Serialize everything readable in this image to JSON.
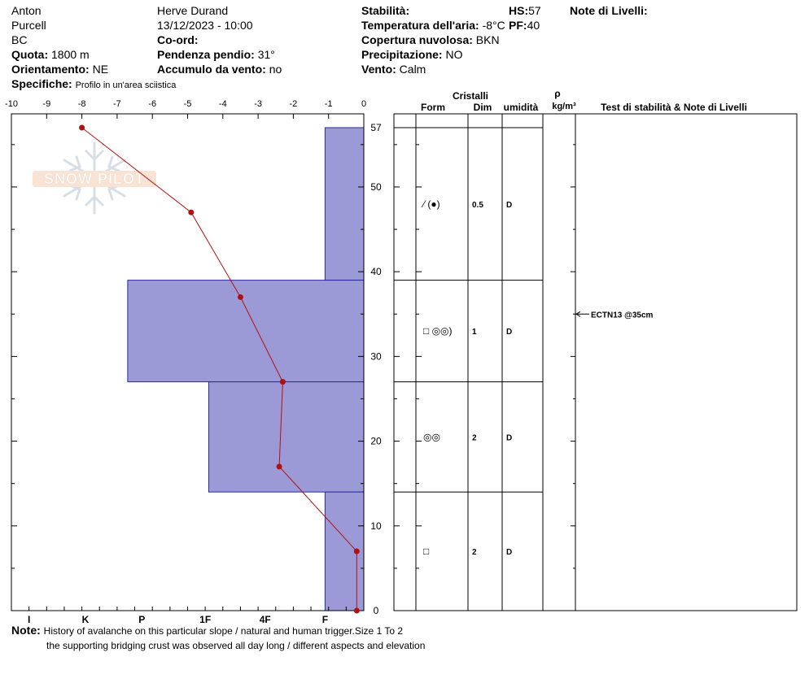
{
  "header": {
    "observer": "Anton",
    "range": "Purcell",
    "region": "BC",
    "elevation_label": "Quota:",
    "elevation_value": "1800 m",
    "aspect_label": "Orientamento:",
    "aspect_value": "NE",
    "specifics_label": "Specifiche:",
    "specifics_value": "Profilo in un'area sciistica",
    "author": "Herve Durand",
    "datetime": "13/12/2023 - 10:00",
    "coords_label": "Co-ord:",
    "slope_label": "Pendenza pendio:",
    "slope_value": "31°",
    "wind_loading_label": "Accumulo da vento:",
    "wind_loading_value": "no",
    "stability_label": "Stabilità:",
    "air_temp_label": "Temperatura dell'aria:",
    "air_temp_value": "-8°C",
    "cloud_label": "Copertura nuvolosa:",
    "cloud_value": "BKN",
    "precip_label": "Precipitazione:",
    "precip_value": "NO",
    "wind_label": "Vento:",
    "wind_value": "Calm",
    "hs_label": "HS:",
    "hs_value": "57",
    "pf_label": "PF:",
    "pf_value": "40",
    "layer_notes_label": "Note di Livelli:"
  },
  "logo_text": "SNOW PILOT",
  "columns": {
    "crystals": "Cristalli",
    "form": "Form",
    "size": "Dim",
    "moisture": "umidità",
    "rho": "ρ",
    "density_unit": "kg/m³",
    "tests": "Test di stabilità & Note di Livelli"
  },
  "footer": {
    "note_label": "Note:",
    "line1": "History of avalanche on this particular slope / natural and human trigger.Size 1 To 2",
    "line2": "the supporting bridging crust was observed all day long / different aspects and elevation"
  },
  "chart_data": {
    "type": "snow_profile",
    "temperature_axis": {
      "range": [
        -10,
        0
      ],
      "ticks": [
        "-10",
        "-9",
        "-8",
        "-7",
        "-6",
        "-5",
        "-4",
        "-3",
        "-2",
        "-1",
        "0"
      ]
    },
    "hardness_axis": {
      "labels": [
        "I",
        "K",
        "P",
        "1F",
        "4F",
        "F"
      ],
      "positions": [
        -9.5,
        -7.9,
        -6.3,
        -4.5,
        -2.8,
        -1.1
      ]
    },
    "height_axis": {
      "range": [
        0,
        57
      ],
      "ticks": [
        0,
        10,
        20,
        30,
        40,
        50,
        57
      ]
    },
    "temperature_profile": [
      {
        "height": 57,
        "temp": -8.0
      },
      {
        "height": 47,
        "temp": -4.9
      },
      {
        "height": 37,
        "temp": -3.5
      },
      {
        "height": 27,
        "temp": -2.3
      },
      {
        "height": 17,
        "temp": -2.4
      },
      {
        "height": 7,
        "temp": -0.2
      },
      {
        "height": 0,
        "temp": -0.2
      }
    ],
    "layers": [
      {
        "top": 57,
        "bottom": 39,
        "hardness_value": -1.1,
        "form": "⁄ (●)",
        "size": "0.5",
        "moisture": "D"
      },
      {
        "top": 39,
        "bottom": 27,
        "hardness_value": -6.7,
        "form": "□ ◎◎)",
        "size": "1",
        "moisture": "D"
      },
      {
        "top": 27,
        "bottom": 14,
        "hardness_value": -4.4,
        "form": "◎◎",
        "size": "2",
        "moisture": "D"
      },
      {
        "top": 14,
        "bottom": 0,
        "hardness_value": -1.1,
        "form": "□",
        "size": "2",
        "moisture": "D"
      }
    ],
    "stability_tests": [
      {
        "height": 35,
        "label": "ECTN13 @35cm"
      }
    ]
  }
}
